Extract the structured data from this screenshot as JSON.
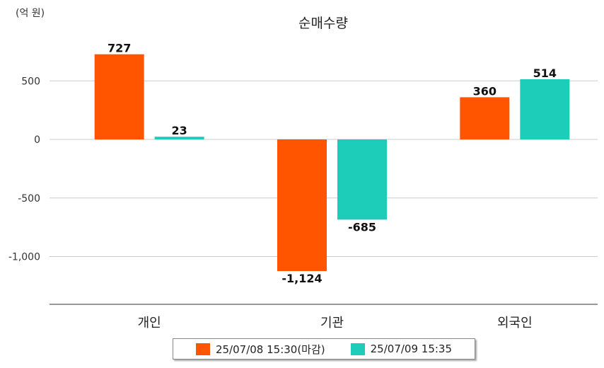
{
  "chart_data": {
    "type": "bar",
    "title": "순매수량",
    "unit_label": "(억 원)",
    "categories": [
      "개인",
      "기관",
      "외국인"
    ],
    "series": [
      {
        "name": "25/07/08 15:30(마감)",
        "color": "#ff5500",
        "values": [
          727,
          -1124,
          360
        ],
        "labels": [
          "727",
          "-1,124",
          "360"
        ]
      },
      {
        "name": "25/07/09 15:35",
        "color": "#1ecdb9",
        "values": [
          23,
          -685,
          514
        ],
        "labels": [
          "23",
          "-685",
          "514"
        ]
      }
    ],
    "yticks": [
      500,
      0,
      -500,
      -1000
    ],
    "ytick_labels": [
      "500",
      "0",
      "-500",
      "-1,000"
    ],
    "ylim": [
      -1400,
      900
    ],
    "grid": true,
    "legend_position": "bottom"
  }
}
